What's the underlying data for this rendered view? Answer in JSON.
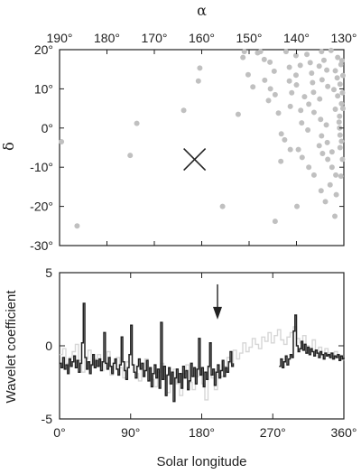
{
  "chart_data": [
    {
      "type": "scatter",
      "xlabel": "α",
      "ylabel": "δ",
      "xlim": [
        190,
        130
      ],
      "ylim": [
        -30,
        20
      ],
      "x_reversed": true,
      "x_ticks": [
        190,
        180,
        170,
        160,
        150,
        140,
        130
      ],
      "x_tick_labels": [
        "190°",
        "180°",
        "170°",
        "160°",
        "150°",
        "140°",
        "130°"
      ],
      "y_ticks": [
        -30,
        -20,
        -10,
        0,
        10,
        20
      ],
      "y_tick_labels": [
        "-30°",
        "-20°",
        "-10°",
        "0°",
        "10°",
        "20°"
      ],
      "grid": false,
      "point_color": "#c0c0c0",
      "marker": {
        "alpha": 161.5,
        "delta": -8,
        "symbol": "×",
        "color": "#222222"
      },
      "points": [
        [
          189.6,
          -3.5
        ],
        [
          186.3,
          -25
        ],
        [
          173.7,
          1.2
        ],
        [
          175.1,
          -7
        ],
        [
          160.7,
          12
        ],
        [
          160.4,
          15.3
        ],
        [
          163.8,
          4.5
        ],
        [
          155.6,
          -20
        ],
        [
          152.3,
          3.5
        ],
        [
          151.0,
          19.5
        ],
        [
          151.3,
          18
        ],
        [
          150.2,
          13.6
        ],
        [
          149.2,
          10.5
        ],
        [
          148.2,
          19.2
        ],
        [
          147.6,
          19.5
        ],
        [
          146.8,
          17.5
        ],
        [
          145.6,
          16.8
        ],
        [
          144.7,
          14.5
        ],
        [
          146.7,
          12.2
        ],
        [
          145.5,
          10
        ],
        [
          144.5,
          8.5
        ],
        [
          145.9,
          7
        ],
        [
          144.5,
          -23.8
        ],
        [
          142.2,
          19.5
        ],
        [
          141.5,
          15.5
        ],
        [
          141.5,
          12
        ],
        [
          140.1,
          18.5
        ],
        [
          139.2,
          16
        ],
        [
          140.1,
          13.5
        ],
        [
          140.0,
          11
        ],
        [
          141.0,
          9
        ],
        [
          141.3,
          5.5
        ],
        [
          143.8,
          3.8
        ],
        [
          143.2,
          -1.5
        ],
        [
          142.5,
          -3
        ],
        [
          141.3,
          -5.5
        ],
        [
          143.3,
          -8.5
        ],
        [
          139.9,
          -20
        ],
        [
          139.1,
          4.5
        ],
        [
          138.3,
          8
        ],
        [
          138.9,
          1.3
        ],
        [
          137.6,
          -0.5
        ],
        [
          139.6,
          -5.5
        ],
        [
          138.8,
          -7.5
        ],
        [
          137.4,
          -10
        ],
        [
          137.8,
          18.8
        ],
        [
          137.1,
          16.7
        ],
        [
          136.8,
          14
        ],
        [
          136.6,
          11.6
        ],
        [
          136.4,
          9.1
        ],
        [
          137.4,
          6.1
        ],
        [
          136.3,
          4
        ],
        [
          134.7,
          19.5
        ],
        [
          134.2,
          17.3
        ],
        [
          135.2,
          15.8
        ],
        [
          133.6,
          14.8
        ],
        [
          134.6,
          12.3
        ],
        [
          133.4,
          10.6
        ],
        [
          135.1,
          7.4
        ],
        [
          134.9,
          2.2
        ],
        [
          133.7,
          0.8
        ],
        [
          134.7,
          -2
        ],
        [
          135.2,
          -4.5
        ],
        [
          133.5,
          -3.7
        ],
        [
          134.5,
          -6.5
        ],
        [
          133.4,
          -8
        ],
        [
          136.3,
          -12
        ],
        [
          134.8,
          -16
        ],
        [
          133.9,
          -18.8
        ],
        [
          132.5,
          -10
        ],
        [
          131.7,
          -12
        ],
        [
          132.9,
          -14.5
        ],
        [
          131.6,
          -17
        ],
        [
          131.9,
          -22.5
        ],
        [
          132.7,
          19.8
        ],
        [
          131.3,
          18
        ],
        [
          130.6,
          16.2
        ],
        [
          131.8,
          14.6
        ],
        [
          131.4,
          12.8
        ],
        [
          130.8,
          11.2
        ],
        [
          132.1,
          9.8
        ],
        [
          131.3,
          8.2
        ],
        [
          130.5,
          6.2
        ],
        [
          131.8,
          4.8
        ],
        [
          130.9,
          3
        ],
        [
          131.0,
          1.5
        ],
        [
          130.9,
          0
        ],
        [
          130.8,
          -1.8
        ],
        [
          130.5,
          -3.4
        ],
        [
          130.8,
          -5
        ],
        [
          132.5,
          -6.1
        ],
        [
          130.3,
          -8
        ],
        [
          130.6,
          -12.3
        ],
        [
          130.4,
          17.2
        ],
        [
          130.2,
          13.4
        ],
        [
          130.3,
          9
        ],
        [
          130.2,
          5
        ]
      ]
    },
    {
      "type": "line",
      "xlabel": "Solar longitude",
      "ylabel": "Wavelet coefficient",
      "xlim": [
        0,
        360
      ],
      "ylim": [
        -5,
        5
      ],
      "x_ticks": [
        0,
        90,
        180,
        270,
        360
      ],
      "x_tick_labels": [
        "0°",
        "90°",
        "180°",
        "270°",
        "360°"
      ],
      "y_ticks": [
        -5,
        0,
        5
      ],
      "y_tick_labels": [
        "-5",
        "0",
        "5"
      ],
      "grid": false,
      "arrow_at": {
        "x": 200,
        "y_from": 4.2,
        "y_to": 1.8
      },
      "series": [
        {
          "style": "light",
          "color": "#d6d6d6",
          "x": [
            0,
            4,
            8,
            12,
            16,
            20,
            24,
            28,
            32,
            36,
            40,
            44,
            48,
            52,
            56,
            60,
            64,
            68,
            72,
            76,
            80,
            84,
            88,
            92,
            96,
            100,
            104,
            108,
            112,
            116,
            120,
            124,
            128,
            132,
            136,
            140,
            144,
            148,
            152,
            156,
            160,
            164,
            168,
            172,
            176,
            180,
            184,
            188,
            192,
            196,
            200,
            204,
            208,
            212,
            216,
            220,
            224,
            228,
            232,
            236,
            240,
            244,
            248,
            252,
            256,
            260,
            264,
            268,
            272,
            276,
            280,
            284,
            288,
            292,
            296,
            300,
            304,
            308,
            312,
            316,
            320,
            324,
            328,
            332,
            336,
            340,
            344,
            348,
            352,
            356,
            360
          ],
          "y": [
            -0.6,
            -0.2,
            -1.2,
            -0.8,
            -0.4,
            0.1,
            -1.0,
            -1.8,
            -0.9,
            -0.3,
            -1.4,
            -0.9,
            -0.6,
            -1.7,
            -1.1,
            -0.4,
            -2.0,
            -1.2,
            -0.8,
            -1.5,
            -2.2,
            -1.1,
            -0.6,
            -1.3,
            -1.9,
            -2.4,
            -1.7,
            -0.9,
            -1.6,
            -2.3,
            -2.8,
            -1.8,
            -1.2,
            -2.1,
            -3.2,
            -2.0,
            -1.6,
            -2.6,
            -3.4,
            -1.9,
            -1.3,
            -2.5,
            -3.0,
            -2.1,
            -1.7,
            -2.6,
            -3.7,
            -1.5,
            -2.2,
            -3.0,
            -1.8,
            -2.1,
            -1.4,
            -0.8,
            -1.2,
            -0.3,
            -0.9,
            -0.5,
            0.2,
            -0.4,
            -0.1,
            0.5,
            0.1,
            -0.2,
            0.6,
            0.3,
            0.9,
            0.2,
            0.7,
            1.1,
            0.4,
            0.1,
            0.6,
            0.9,
            1.3,
            0.5,
            0.2,
            0.7,
            0.0,
            -0.3,
            0.4,
            -0.4,
            -0.1,
            -0.6,
            -0.2,
            -0.5,
            -0.9,
            -0.4,
            -0.7,
            -0.9,
            -1.0
          ]
        },
        {
          "style": "dark",
          "color": "#222222",
          "x": [
            0,
            2,
            4,
            6,
            8,
            10,
            12,
            14,
            16,
            18,
            20,
            22,
            24,
            26,
            28,
            30,
            32,
            34,
            36,
            38,
            40,
            42,
            44,
            46,
            48,
            50,
            52,
            54,
            56,
            58,
            60,
            62,
            64,
            66,
            68,
            70,
            72,
            74,
            76,
            78,
            80,
            82,
            84,
            86,
            88,
            90,
            92,
            94,
            96,
            98,
            100,
            102,
            104,
            106,
            108,
            110,
            112,
            114,
            116,
            118,
            120,
            122,
            124,
            126,
            128,
            130,
            132,
            134,
            136,
            138,
            140,
            142,
            144,
            146,
            148,
            150,
            152,
            154,
            156,
            158,
            160,
            162,
            164,
            166,
            168,
            170,
            172,
            174,
            176,
            178,
            180,
            182,
            184,
            186,
            188,
            190,
            192,
            194,
            196,
            198,
            200,
            202,
            204,
            206,
            208,
            210,
            212,
            214,
            216,
            218,
            220,
            null,
            278,
            280,
            282,
            284,
            286,
            288,
            290,
            292,
            294,
            296,
            298,
            300,
            302,
            304,
            306,
            308,
            310,
            312,
            314,
            316,
            318,
            320,
            322,
            324,
            326,
            328,
            330,
            332,
            334,
            336,
            338,
            340,
            342,
            344,
            346,
            348,
            350,
            352,
            354,
            356,
            358,
            360
          ],
          "y": [
            -1.2,
            -1.5,
            -0.8,
            -1.6,
            -1.3,
            -1.9,
            -0.9,
            -1.4,
            -1.1,
            -0.7,
            -1.5,
            -1.0,
            -1.8,
            -1.2,
            0.2,
            2.9,
            -0.8,
            -1.6,
            -1.1,
            -1.9,
            -1.3,
            -0.6,
            -1.5,
            -1.0,
            -1.4,
            -0.9,
            -1.7,
            -1.1,
            0.9,
            -1.2,
            -1.6,
            -0.8,
            -1.4,
            -1.9,
            -1.2,
            -0.9,
            -1.6,
            -2.0,
            -1.3,
            0.6,
            -1.1,
            -1.7,
            -2.3,
            -1.5,
            -0.6,
            1.4,
            -1.3,
            -1.8,
            -2.2,
            -1.4,
            -0.9,
            -1.6,
            -1.2,
            -2.1,
            -1.7,
            -1.0,
            -2.4,
            -1.5,
            -2.8,
            -1.9,
            -1.3,
            -2.2,
            -1.6,
            -2.9,
            1.6,
            -2.3,
            -1.4,
            -3.4,
            -2.0,
            -1.5,
            -2.6,
            -1.8,
            -3.8,
            -2.2,
            -1.6,
            -2.5,
            -1.9,
            -2.9,
            -1.4,
            -2.2,
            -1.7,
            -3.0,
            -2.4,
            -1.2,
            -2.1,
            -1.5,
            -2.6,
            -1.6,
            0.5,
            -2.0,
            -1.5,
            -2.8,
            -1.8,
            -2.3,
            -1.4,
            0.2,
            -2.0,
            -1.6,
            -2.7,
            -1.8,
            -1.3,
            -2.2,
            -1.7,
            -1.0,
            -2.1,
            -1.5,
            -1.8,
            -1.1,
            -0.4,
            -1.4,
            -1.2,
            null,
            -1.4,
            -0.9,
            -1.5,
            -1.1,
            -0.7,
            -1.3,
            -0.9,
            -0.6,
            -0.8,
            1.0,
            2.1,
            0.0,
            -0.4,
            -0.2,
            0.3,
            -0.3,
            0.1,
            -0.5,
            -0.1,
            -0.6,
            -0.2,
            -0.4,
            -0.7,
            -0.3,
            -0.5,
            -0.8,
            -0.4,
            -0.6,
            -0.9,
            -0.5,
            -0.7,
            -0.6,
            -0.8,
            -0.5,
            -0.9,
            -0.7,
            -0.8,
            -0.6,
            -1.0,
            -0.7,
            -0.9,
            -0.8
          ]
        }
      ]
    }
  ]
}
